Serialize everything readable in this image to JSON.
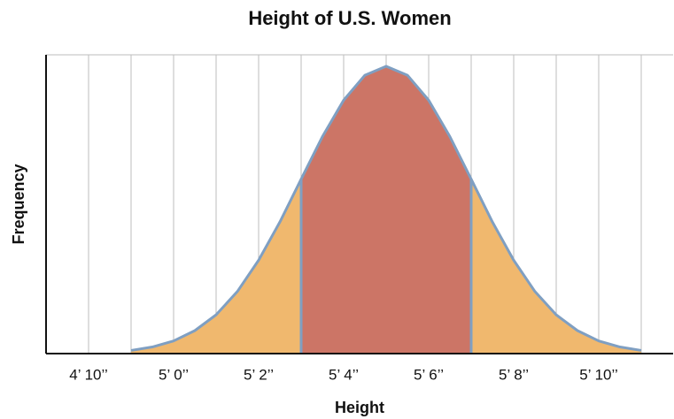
{
  "chart_data": {
    "type": "area",
    "title": "Height of U.S. Women",
    "xlabel": "Height",
    "ylabel": "Frequency",
    "x": [
      59,
      59.5,
      60,
      60.5,
      61,
      61.5,
      62,
      62.5,
      63,
      63.5,
      64,
      64.5,
      65,
      65.5,
      66,
      66.5,
      67,
      67.5,
      68,
      68.5,
      69,
      69.5,
      70,
      70.5,
      71
    ],
    "values": [
      0.011,
      0.023,
      0.044,
      0.08,
      0.135,
      0.216,
      0.325,
      0.458,
      0.607,
      0.755,
      0.882,
      0.969,
      1,
      0.969,
      0.882,
      0.755,
      0.607,
      0.458,
      0.325,
      0.216,
      0.135,
      0.08,
      0.044,
      0.023,
      0.011
    ],
    "color": "#f0b86e",
    "line_color": "#7f9fc2",
    "highlight": [
      63,
      67
    ],
    "highlight_color": "#cc7566",
    "xlim": [
      57,
      71.75
    ],
    "ylim": [
      0,
      1.04
    ],
    "xticks": [
      {
        "value": 58,
        "label": "4’ 10’’"
      },
      {
        "value": 60,
        "label": "5’ 0’’"
      },
      {
        "value": 62,
        "label": "5’ 2’’"
      },
      {
        "value": 64,
        "label": "5’ 4’’"
      },
      {
        "value": 66,
        "label": "5’ 6’’"
      },
      {
        "value": 68,
        "label": "5’ 8’’"
      },
      {
        "value": 70,
        "label": "5’ 10’’"
      }
    ],
    "minor_xticks": [
      59,
      61,
      63,
      65,
      67,
      69,
      71
    ],
    "grid": true
  }
}
